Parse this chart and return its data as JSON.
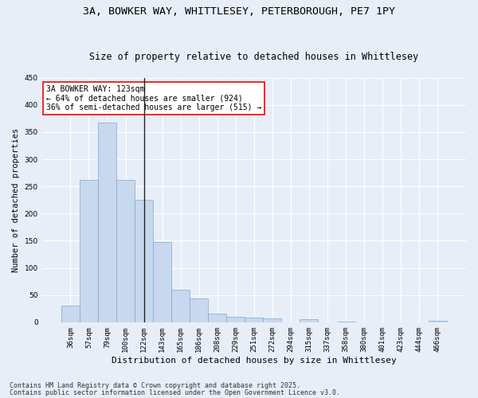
{
  "title_line1": "3A, BOWKER WAY, WHITTLESEY, PETERBOROUGH, PE7 1PY",
  "title_line2": "Size of property relative to detached houses in Whittlesey",
  "xlabel": "Distribution of detached houses by size in Whittlesey",
  "ylabel": "Number of detached properties",
  "categories": [
    "36sqm",
    "57sqm",
    "79sqm",
    "100sqm",
    "122sqm",
    "143sqm",
    "165sqm",
    "186sqm",
    "208sqm",
    "229sqm",
    "251sqm",
    "272sqm",
    "294sqm",
    "315sqm",
    "337sqm",
    "358sqm",
    "380sqm",
    "401sqm",
    "423sqm",
    "444sqm",
    "466sqm"
  ],
  "values": [
    30,
    262,
    368,
    262,
    225,
    148,
    60,
    44,
    16,
    10,
    9,
    7,
    0,
    5,
    0,
    1,
    0,
    0,
    0,
    0,
    2
  ],
  "bar_color": "#c8d8ee",
  "bar_edge_color": "#7aaad0",
  "vline_index": 4,
  "vline_color": "#222222",
  "annotation_text": "3A BOWKER WAY: 123sqm\n← 64% of detached houses are smaller (924)\n36% of semi-detached houses are larger (515) →",
  "annotation_box_color": "white",
  "annotation_box_edge_color": "red",
  "annotation_fontsize": 7.0,
  "background_color": "#e8eef8",
  "plot_bg_color": "#e8eef8",
  "grid_color": "white",
  "ylim": [
    0,
    450
  ],
  "yticks": [
    0,
    50,
    100,
    150,
    200,
    250,
    300,
    350,
    400,
    450
  ],
  "footer_line1": "Contains HM Land Registry data © Crown copyright and database right 2025.",
  "footer_line2": "Contains public sector information licensed under the Open Government Licence v3.0.",
  "title_fontsize": 9.5,
  "subtitle_fontsize": 8.5,
  "xlabel_fontsize": 8.0,
  "ylabel_fontsize": 7.5,
  "tick_fontsize": 6.5,
  "footer_fontsize": 6.0
}
